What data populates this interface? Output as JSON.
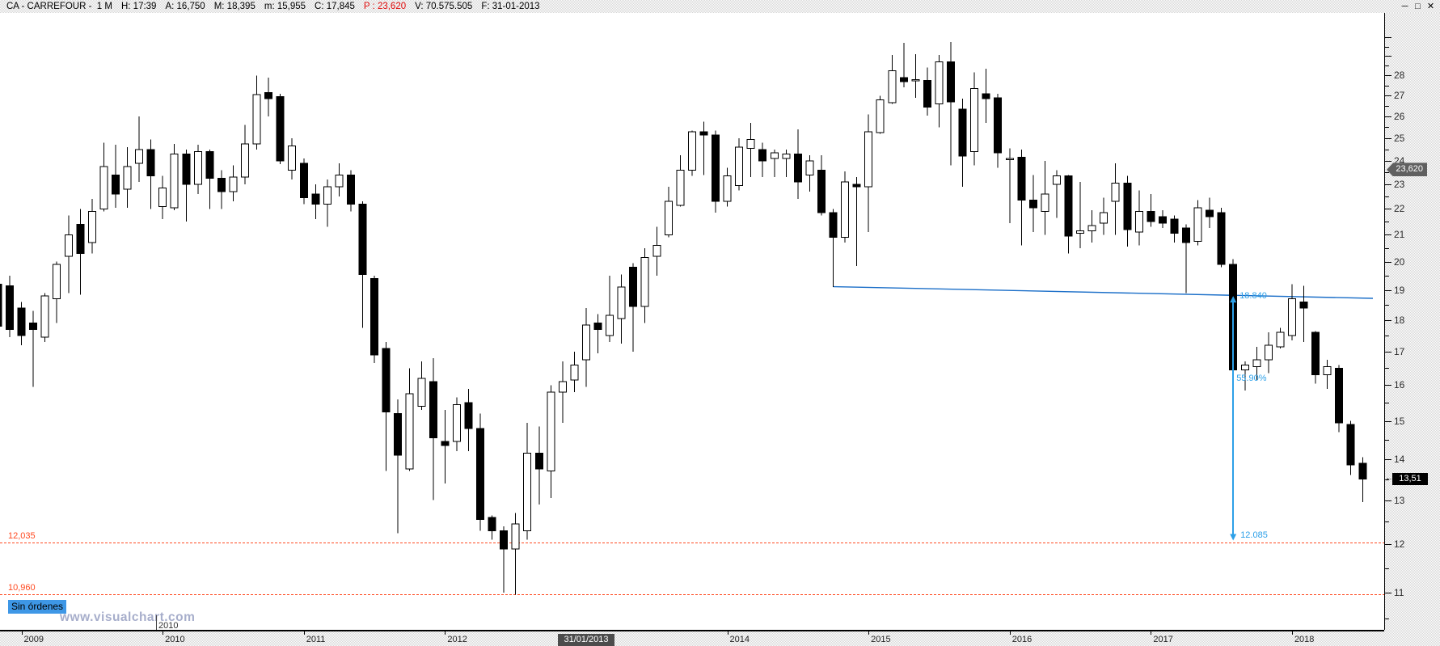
{
  "window": {
    "title_segments": [
      {
        "text": "CA - CARREFOUR -  1 M"
      },
      {
        "text": "H: 17:39"
      },
      {
        "text": "A: 16,750"
      },
      {
        "text": "M: 18,395"
      },
      {
        "text": "m: 15,955"
      },
      {
        "text": "C: 17,845"
      },
      {
        "text": "P : 23,620",
        "emphasis": "red"
      },
      {
        "text": "V: 70.575.505"
      },
      {
        "text": "F: 31-01-2013"
      }
    ],
    "controls": [
      {
        "name": "minimize",
        "glyph": "─"
      },
      {
        "name": "maximize",
        "glyph": "□"
      },
      {
        "name": "close",
        "glyph": "✕"
      }
    ]
  },
  "colors": {
    "level_red": "#ff4a21",
    "trendline_blue": "#1a6ec8",
    "measure_blue": "#2da0e8",
    "candle_black": "#000000",
    "badge_gray": "#606060",
    "badge_black": "#000000",
    "selected_date_bg": "#4c4c4c",
    "no_orders_bg": "#3e97e6",
    "watermark": "#a7aecb"
  },
  "footer": {
    "no_orders_label": "Sin órdenes",
    "watermark": "www.visualchart.com"
  },
  "chart_data": {
    "type": "candlestick",
    "symbol": "CA - CARREFOUR",
    "period": "1 M",
    "columns": [
      "month",
      "open",
      "high",
      "low",
      "close"
    ],
    "candles": [
      [
        "2008-11",
        19.2,
        19.4,
        17.6,
        17.8
      ],
      [
        "2008-12",
        19.15,
        19.5,
        17.45,
        17.7
      ],
      [
        "2009-01",
        18.4,
        18.6,
        17.2,
        17.5
      ],
      [
        "2009-02",
        17.9,
        18.3,
        15.95,
        17.7
      ],
      [
        "2009-03",
        17.45,
        18.9,
        17.3,
        18.8
      ],
      [
        "2009-04",
        18.7,
        20.0,
        17.9,
        19.9
      ],
      [
        "2009-05",
        20.2,
        21.75,
        18.9,
        21.0
      ],
      [
        "2009-06",
        21.4,
        22.0,
        18.85,
        20.3
      ],
      [
        "2009-07",
        20.7,
        22.4,
        20.3,
        21.9
      ],
      [
        "2009-08",
        22.0,
        24.8,
        21.9,
        23.75
      ],
      [
        "2009-09",
        23.4,
        24.7,
        22.05,
        22.6
      ],
      [
        "2009-10",
        22.8,
        24.6,
        22.05,
        23.75
      ],
      [
        "2009-11",
        23.9,
        26.0,
        23.1,
        24.5
      ],
      [
        "2009-12",
        24.5,
        24.95,
        22.0,
        23.35
      ],
      [
        "2010-01",
        22.1,
        23.35,
        21.6,
        22.85
      ],
      [
        "2010-02",
        22.05,
        24.75,
        21.95,
        24.3
      ],
      [
        "2010-03",
        24.3,
        24.5,
        21.5,
        23.0
      ],
      [
        "2010-04",
        23.0,
        24.7,
        22.6,
        24.4
      ],
      [
        "2010-05",
        24.4,
        24.5,
        22.0,
        23.25
      ],
      [
        "2010-06",
        23.25,
        23.6,
        22.0,
        22.7
      ],
      [
        "2010-07",
        22.7,
        23.8,
        22.3,
        23.3
      ],
      [
        "2010-08",
        23.3,
        25.6,
        23.0,
        24.75
      ],
      [
        "2010-09",
        24.75,
        28.0,
        24.5,
        27.05
      ],
      [
        "2010-10",
        27.15,
        27.9,
        26.0,
        26.85
      ],
      [
        "2010-11",
        26.95,
        27.1,
        23.85,
        24.0
      ],
      [
        "2010-12",
        23.6,
        25.0,
        23.2,
        24.65
      ],
      [
        "2011-01",
        23.9,
        24.1,
        22.2,
        22.45
      ],
      [
        "2011-02",
        22.6,
        23.0,
        21.6,
        22.2
      ],
      [
        "2011-03",
        22.2,
        23.2,
        21.3,
        22.9
      ],
      [
        "2011-04",
        22.9,
        23.9,
        22.5,
        23.4
      ],
      [
        "2011-05",
        23.4,
        23.6,
        21.9,
        22.2
      ],
      [
        "2011-06",
        22.2,
        22.3,
        17.75,
        19.55
      ],
      [
        "2011-07",
        19.4,
        19.5,
        16.65,
        16.9
      ],
      [
        "2011-08",
        17.1,
        17.3,
        13.7,
        15.25
      ],
      [
        "2011-09",
        15.2,
        15.6,
        12.25,
        14.1
      ],
      [
        "2011-10",
        13.75,
        16.5,
        13.7,
        15.75
      ],
      [
        "2011-11",
        15.4,
        16.7,
        15.3,
        16.2
      ],
      [
        "2011-12",
        16.1,
        16.8,
        13.0,
        14.55
      ],
      [
        "2012-01",
        14.45,
        15.3,
        13.4,
        14.35
      ],
      [
        "2012-02",
        14.45,
        15.65,
        14.2,
        15.45
      ],
      [
        "2012-03",
        15.5,
        15.9,
        14.2,
        14.8
      ],
      [
        "2012-04",
        14.8,
        15.2,
        12.3,
        12.55
      ],
      [
        "2012-05",
        12.6,
        12.65,
        12.1,
        12.3
      ],
      [
        "2012-06",
        12.3,
        12.4,
        11.0,
        11.9
      ],
      [
        "2012-07",
        11.9,
        12.7,
        10.96,
        12.45
      ],
      [
        "2012-08",
        12.3,
        14.95,
        12.1,
        14.15
      ],
      [
        "2012-09",
        14.15,
        14.85,
        12.9,
        13.75
      ],
      [
        "2012-10",
        13.7,
        16.0,
        13.05,
        15.8
      ],
      [
        "2012-11",
        15.8,
        16.7,
        14.95,
        16.1
      ],
      [
        "2012-12",
        16.15,
        17.0,
        15.8,
        16.6
      ],
      [
        "2013-01",
        16.75,
        18.395,
        15.955,
        17.845
      ],
      [
        "2013-02",
        17.9,
        18.2,
        16.95,
        17.7
      ],
      [
        "2013-03",
        17.5,
        19.5,
        17.3,
        18.15
      ],
      [
        "2013-04",
        18.05,
        19.55,
        17.25,
        19.1
      ],
      [
        "2013-05",
        19.8,
        19.95,
        17.0,
        18.45
      ],
      [
        "2013-06",
        18.45,
        20.5,
        17.9,
        20.15
      ],
      [
        "2013-07",
        20.2,
        21.3,
        19.5,
        20.6
      ],
      [
        "2013-08",
        21.0,
        22.9,
        20.9,
        22.3
      ],
      [
        "2013-09",
        22.15,
        24.25,
        22.1,
        23.6
      ],
      [
        "2013-10",
        23.6,
        25.35,
        23.35,
        25.3
      ],
      [
        "2013-11",
        25.3,
        25.75,
        23.4,
        25.15
      ],
      [
        "2013-12",
        25.15,
        25.35,
        21.85,
        22.3
      ],
      [
        "2014-01",
        22.3,
        23.7,
        22.1,
        23.35
      ],
      [
        "2014-02",
        22.95,
        25.0,
        22.75,
        24.6
      ],
      [
        "2014-03",
        24.55,
        25.7,
        23.3,
        24.95
      ],
      [
        "2014-04",
        24.5,
        24.8,
        23.3,
        24.0
      ],
      [
        "2014-05",
        24.1,
        24.5,
        23.3,
        24.35
      ],
      [
        "2014-06",
        24.1,
        24.5,
        23.3,
        24.3
      ],
      [
        "2014-07",
        24.3,
        25.4,
        22.4,
        23.1
      ],
      [
        "2014-08",
        23.4,
        24.25,
        22.7,
        24.0
      ],
      [
        "2014-09",
        23.6,
        24.25,
        21.75,
        21.85
      ],
      [
        "2014-10",
        21.85,
        22.0,
        19.1,
        20.9
      ],
      [
        "2014-11",
        20.9,
        23.55,
        20.7,
        23.1
      ],
      [
        "2014-12",
        23.0,
        23.3,
        19.85,
        22.9
      ],
      [
        "2015-01",
        22.9,
        26.1,
        21.1,
        25.3
      ],
      [
        "2015-02",
        25.25,
        27.0,
        25.2,
        26.8
      ],
      [
        "2015-03",
        26.65,
        29.05,
        26.6,
        28.25
      ],
      [
        "2015-04",
        27.9,
        29.7,
        27.4,
        27.7
      ],
      [
        "2015-05",
        27.8,
        29.1,
        26.9,
        27.8
      ],
      [
        "2015-06",
        27.75,
        28.4,
        26.05,
        26.45
      ],
      [
        "2015-07",
        26.6,
        29.05,
        25.5,
        28.7
      ],
      [
        "2015-08",
        28.7,
        29.75,
        23.8,
        26.7
      ],
      [
        "2015-09",
        26.35,
        26.85,
        22.9,
        24.2
      ],
      [
        "2015-10",
        24.4,
        28.15,
        23.8,
        27.35
      ],
      [
        "2015-11",
        27.1,
        28.35,
        25.7,
        26.85
      ],
      [
        "2015-12",
        26.9,
        27.1,
        23.7,
        24.35
      ],
      [
        "2016-01",
        24.1,
        24.55,
        21.45,
        24.1
      ],
      [
        "2016-02",
        24.15,
        24.5,
        20.6,
        22.35
      ],
      [
        "2016-03",
        22.35,
        23.4,
        21.1,
        22.05
      ],
      [
        "2016-04",
        21.9,
        24.0,
        21.0,
        22.6
      ],
      [
        "2016-05",
        23.0,
        23.6,
        21.65,
        23.35
      ],
      [
        "2016-06",
        23.35,
        23.4,
        20.3,
        20.95
      ],
      [
        "2016-07",
        21.05,
        23.1,
        20.5,
        21.15
      ],
      [
        "2016-08",
        21.15,
        21.95,
        20.7,
        21.35
      ],
      [
        "2016-09",
        21.45,
        22.45,
        21.0,
        21.85
      ],
      [
        "2016-10",
        22.3,
        23.9,
        21.0,
        23.05
      ],
      [
        "2016-11",
        23.05,
        23.35,
        20.55,
        21.2
      ],
      [
        "2016-12",
        21.1,
        22.75,
        20.6,
        21.9
      ],
      [
        "2017-01",
        21.9,
        22.6,
        21.3,
        21.5
      ],
      [
        "2017-02",
        21.7,
        21.95,
        21.25,
        21.45
      ],
      [
        "2017-03",
        21.6,
        21.75,
        20.7,
        21.05
      ],
      [
        "2017-04",
        21.25,
        21.4,
        18.9,
        20.7
      ],
      [
        "2017-05",
        20.75,
        22.35,
        20.6,
        22.05
      ],
      [
        "2017-06",
        21.95,
        22.45,
        21.25,
        21.7
      ],
      [
        "2017-07",
        21.85,
        22.05,
        19.8,
        19.9
      ],
      [
        "2017-08",
        19.9,
        20.1,
        16.3,
        16.45
      ],
      [
        "2017-09",
        16.45,
        16.7,
        15.85,
        16.6
      ],
      [
        "2017-10",
        16.55,
        17.15,
        16.15,
        16.75
      ],
      [
        "2017-11",
        16.75,
        17.6,
        16.35,
        17.2
      ],
      [
        "2017-12",
        17.15,
        17.75,
        17.1,
        17.6
      ],
      [
        "2018-01",
        17.5,
        19.2,
        17.35,
        18.7
      ],
      [
        "2018-02",
        18.6,
        19.15,
        17.3,
        18.4
      ],
      [
        "2018-03",
        17.6,
        17.65,
        16.05,
        16.3
      ],
      [
        "2018-04",
        16.3,
        16.75,
        15.9,
        16.55
      ],
      [
        "2018-05",
        16.5,
        16.6,
        14.7,
        14.95
      ],
      [
        "2018-06",
        14.9,
        15.0,
        13.6,
        13.85
      ],
      [
        "2018-07",
        13.9,
        14.05,
        12.95,
        13.51
      ]
    ],
    "y_axis": {
      "scale": "log",
      "tick_labels": [
        28,
        27,
        26,
        25,
        24,
        23,
        22,
        21,
        20,
        19,
        18,
        17,
        16,
        15,
        14,
        13,
        12,
        11
      ],
      "minor_step": 0.5
    },
    "x_axis": {
      "year_labels": [
        "2009",
        "2010",
        "2011",
        "2012",
        "2014",
        "2015",
        "2016",
        "2017",
        "2018"
      ],
      "selected_date": "31/01/2013",
      "clipped_inner_label": "2010"
    },
    "overlays": {
      "horizontal_levels": [
        {
          "label": "12,035",
          "price": 12.035
        },
        {
          "label": "10,960",
          "price": 10.96
        }
      ],
      "trendline": {
        "from_month": "2014-10",
        "from_price": 19.12,
        "to_price": 18.72
      },
      "measure": {
        "month": "2017-08",
        "top_label": "18.840",
        "top_price": 18.84,
        "pct_label": "55.90%",
        "bottom_label": "12.085",
        "bottom_price": 12.085
      }
    },
    "badges": {
      "marked_price_label": "23,620",
      "marked_price": 23.62,
      "last_price_label": "13,51",
      "last_price": 13.51
    }
  }
}
